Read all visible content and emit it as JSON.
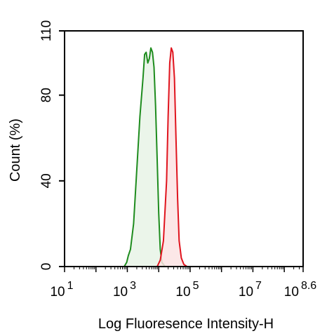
{
  "chart_data": {
    "type": "area",
    "title": "",
    "xlabel": "Log Fluoresence Intensity-H",
    "ylabel": "Count  (%)",
    "x_scale": "log",
    "xlim": [
      1,
      8.6
    ],
    "ylim": [
      0,
      110
    ],
    "x_ticks": [
      {
        "value": 1,
        "base": "10",
        "exp": "1"
      },
      {
        "value": 3,
        "base": "10",
        "exp": "3"
      },
      {
        "value": 5,
        "base": "10",
        "exp": "5"
      },
      {
        "value": 7,
        "base": "10",
        "exp": "7"
      },
      {
        "value": 8.6,
        "base": "10",
        "exp": "8.6"
      }
    ],
    "y_ticks": [
      0,
      40,
      80,
      110
    ],
    "grid": false,
    "series": [
      {
        "color": "#1e8c1e",
        "fill": "#e8f3e6",
        "x": [
          2.9,
          2.98,
          3.03,
          3.1,
          3.2,
          3.3,
          3.4,
          3.5,
          3.55,
          3.6,
          3.65,
          3.7,
          3.75,
          3.8,
          3.85,
          3.9,
          3.95,
          4.0,
          4.05,
          4.1,
          4.2
        ],
        "y": [
          0,
          2,
          5,
          8,
          20,
          45,
          70,
          88,
          99,
          100,
          95,
          97,
          102,
          100,
          93,
          75,
          50,
          25,
          8,
          2,
          0
        ]
      },
      {
        "color": "#e0141e",
        "fill": "#fbe3e3",
        "x": [
          3.95,
          4.05,
          4.15,
          4.25,
          4.3,
          4.35,
          4.4,
          4.45,
          4.5,
          4.55,
          4.6,
          4.65,
          4.72,
          4.8,
          4.9
        ],
        "y": [
          0,
          3,
          12,
          40,
          70,
          95,
          102,
          100,
          88,
          60,
          32,
          12,
          4,
          1,
          0
        ]
      }
    ]
  }
}
